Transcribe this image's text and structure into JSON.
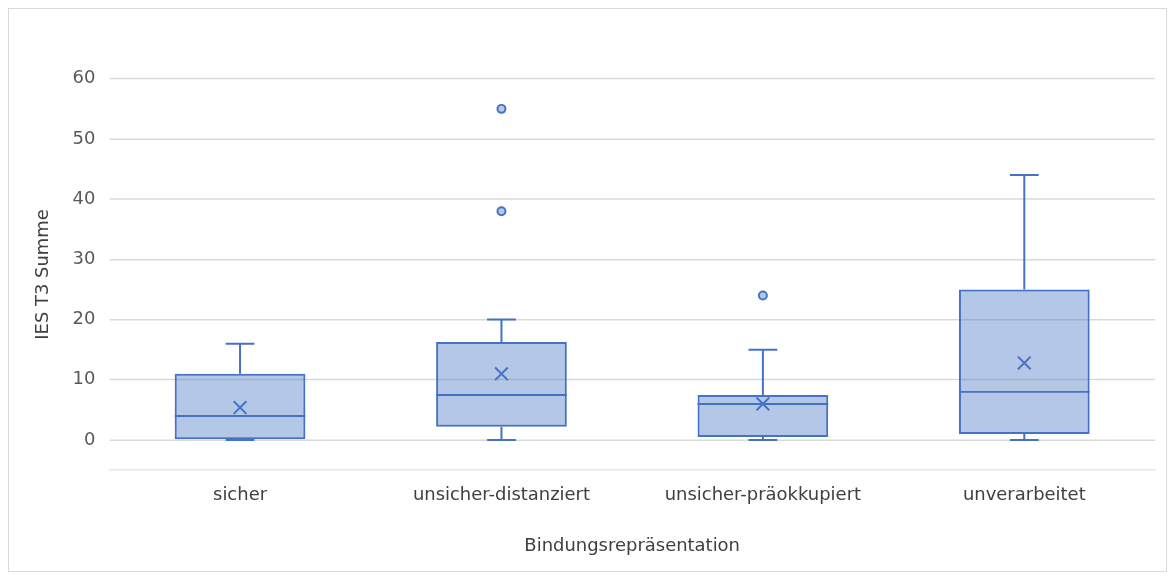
{
  "chart_data": {
    "type": "box",
    "xlabel": "Bindungsrepräsentation",
    "ylabel": "IES T3 Summe",
    "categories": [
      "sicher",
      "unsicher-distanziert",
      "unsicher-präokkupiert",
      "unverarbeitet"
    ],
    "boxes": [
      {
        "low": 0,
        "q1": 0,
        "median": 4,
        "q3": 11,
        "high": 16,
        "mean": 5.4
      },
      {
        "low": 0,
        "q1": 2.2,
        "median": 7.5,
        "q3": 16.3,
        "high": 20,
        "mean": 11,
        "outliers": [
          38,
          55
        ]
      },
      {
        "low": 0,
        "q1": 0.5,
        "median": 6,
        "q3": 7.5,
        "high": 15,
        "mean": 6,
        "outliers": [
          24
        ]
      },
      {
        "low": 0,
        "q1": 1,
        "median": 8,
        "q3": 25,
        "high": 44,
        "mean": 12.8
      }
    ],
    "color": "#4472c4",
    "ylim": [
      -5,
      60
    ],
    "yticks": [
      0,
      10,
      20,
      30,
      40,
      50,
      60
    ],
    "grid": "y"
  }
}
